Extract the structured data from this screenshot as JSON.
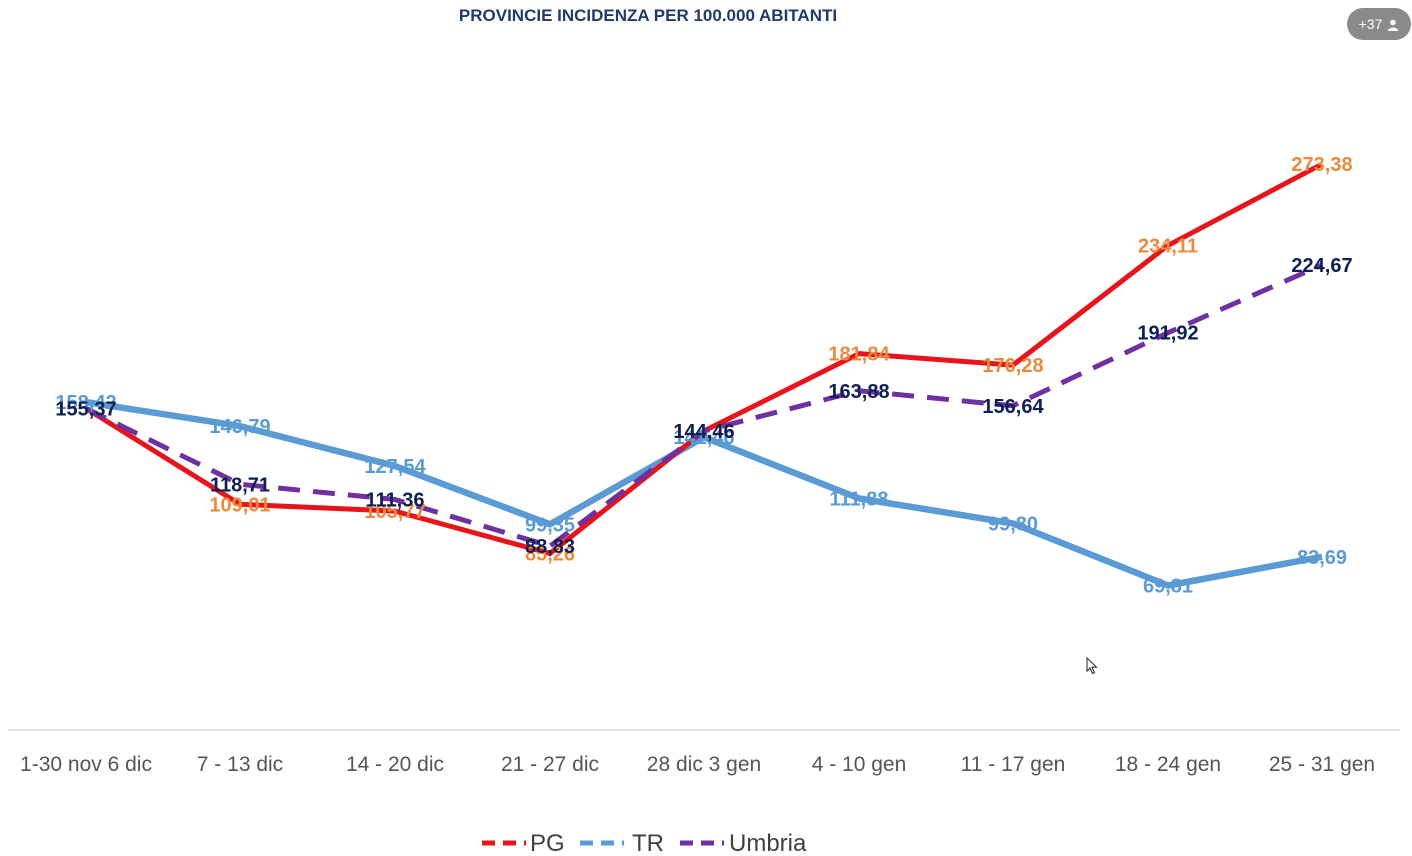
{
  "header": {
    "title": "PROVINCIE INCIDENZA PER 100.000 ABITANTI",
    "participants_badge": "+37",
    "participants_icon": "person-icon"
  },
  "colors": {
    "pg": "#e8141b",
    "pg_label": "#ec8a3c",
    "tr": "#5b9bd5",
    "tr_label": "#5b9bd5",
    "umbria": "#7030a0",
    "umbria_label": "#0d1f56",
    "axis": "#d9d9d9"
  },
  "chart_data": {
    "type": "line",
    "title": "PROVINCIE INCIDENZA PER 100.000 ABITANTI",
    "categories": [
      "1-30 nov 6 dic",
      "7 - 13 dic",
      "14 - 20 dic",
      "21 - 27 dic",
      "28 dic 3 gen",
      "4 - 10 gen",
      "11 - 17 gen",
      "18 - 24 gen",
      "25 - 31 gen"
    ],
    "ylim": [
      0,
      300
    ],
    "grid": false,
    "legend": "bottom",
    "series": [
      {
        "key": "pg",
        "name": "PG",
        "style": "solid",
        "values": [
          155.37,
          109.01,
          105.77,
          85.26,
          144.46,
          181.84,
          176.28,
          234.11,
          273.38
        ],
        "labels": [
          "155,37",
          "109,01",
          "105,77",
          "85,26",
          "144,46",
          "181,84",
          "176,28",
          "234,11",
          "273,38"
        ]
      },
      {
        "key": "tr",
        "name": "TR",
        "style": "solid",
        "values": [
          158.42,
          146.79,
          127.54,
          99.35,
          141.46,
          111.88,
          99.8,
          69.81,
          83.69
        ],
        "labels": [
          "158,42",
          "146,79",
          "127,54",
          "99,35",
          "141,46",
          "111,88",
          "99,80",
          "69,81",
          "83,69"
        ]
      },
      {
        "key": "umbria",
        "name": "Umbria",
        "style": "dashed",
        "values": [
          155.37,
          118.71,
          111.36,
          88.83,
          144.46,
          163.88,
          156.64,
          191.92,
          224.67
        ],
        "labels": [
          "155,37",
          "118,71",
          "111,36",
          "88,83",
          "144,46",
          "163,88",
          "156,64",
          "191,92",
          "224,67"
        ]
      }
    ]
  }
}
